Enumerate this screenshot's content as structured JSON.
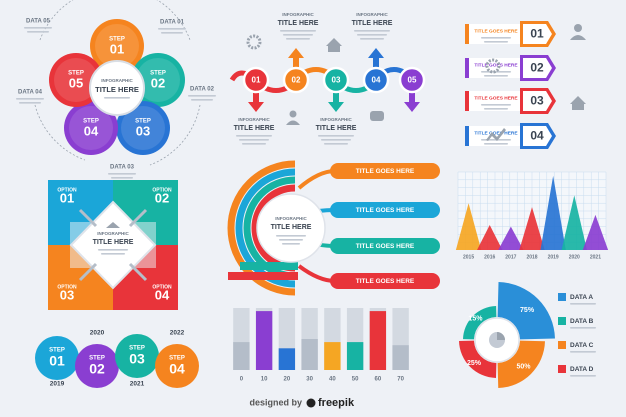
{
  "flower": {
    "subtitle": "INFOGRAPHIC",
    "title": "TITLE HERE",
    "petals": [
      {
        "step": "STEP",
        "number": "01",
        "data": "DATA 01"
      },
      {
        "step": "STEP",
        "number": "02",
        "data": "DATA 02"
      },
      {
        "step": "STEP",
        "number": "03",
        "data": "DATA 03"
      },
      {
        "step": "STEP",
        "number": "04",
        "data": "DATA 04"
      },
      {
        "step": "STEP",
        "number": "05",
        "data": "DATA 05"
      }
    ]
  },
  "timeline": {
    "numbers": [
      "01",
      "02",
      "03",
      "04",
      "05"
    ],
    "captions": [
      {
        "subtitle": "INFOGRAPHIC",
        "title": "TITLE HERE"
      },
      {
        "subtitle": "INFOGRAPHIC",
        "title": "TITLE HERE"
      },
      {
        "subtitle": "INFOGRAPHIC",
        "title": "TITLE HERE"
      },
      {
        "subtitle": "INFOGRAPHIC",
        "title": "TITLE HERE"
      }
    ]
  },
  "tags": {
    "items": [
      {
        "title": "TITLE GOES HERE",
        "number": "01"
      },
      {
        "title": "TITLE GOES HERE",
        "number": "02"
      },
      {
        "title": "TITLE GOES HERE",
        "number": "03"
      },
      {
        "title": "TITLE GOES HERE",
        "number": "04"
      }
    ]
  },
  "options": {
    "subtitle": "INFOGRAPHIC",
    "title": "TITLE HERE",
    "items": [
      {
        "label": "OPTION",
        "number": "01"
      },
      {
        "label": "OPTION",
        "number": "02"
      },
      {
        "label": "OPTION",
        "number": "03"
      },
      {
        "label": "OPTION",
        "number": "04"
      }
    ]
  },
  "semicircle": {
    "subtitle": "INFOGRAPHIC",
    "title": "TITLE HERE",
    "items": [
      "TITLE GOES HERE",
      "TITLE GOES HERE",
      "TITLE GOES HERE",
      "TITLE GOES HERE"
    ]
  },
  "chart_data": [
    {
      "type": "spike",
      "categories": [
        "2015",
        "2016",
        "2017",
        "2018",
        "2019",
        "2020",
        "2021"
      ],
      "values": [
        60,
        32,
        30,
        55,
        95,
        70,
        45
      ],
      "colors": [
        "#f5a623",
        "#e8343a",
        "#8a3ed1",
        "#e8343a",
        "#2874d4",
        "#17b3a3",
        "#8a3ed1"
      ],
      "ylim": [
        0,
        100
      ],
      "grid": true
    },
    {
      "type": "bar",
      "categories": [
        0,
        10,
        20,
        30,
        40,
        50,
        60,
        70
      ],
      "values": [
        45,
        95,
        35,
        50,
        45,
        45,
        95,
        40
      ],
      "colors": [
        "#b4bdc9",
        "#8a3ed1",
        "#2874d4",
        "#b4bdc9",
        "#f5a623",
        "#17b3a3",
        "#e8343a",
        "#b4bdc9"
      ],
      "ylim": [
        0,
        100
      ]
    },
    {
      "type": "pie",
      "categories": [
        "DATA A",
        "DATA B",
        "DATA C",
        "DATA D"
      ],
      "values": [
        75,
        15,
        50,
        25
      ],
      "value_labels": [
        "75%",
        "15%",
        "50%",
        "25%"
      ],
      "colors": [
        "#2a8fd8",
        "#17b3a3",
        "#f5841f",
        "#e8343a"
      ]
    }
  ],
  "steps": {
    "items": [
      {
        "label": "STEP",
        "number": "01",
        "year": "2019"
      },
      {
        "label": "STEP",
        "number": "02",
        "year": "2020"
      },
      {
        "label": "STEP",
        "number": "03",
        "year": "2021"
      },
      {
        "label": "STEP",
        "number": "04",
        "year": "2022"
      }
    ]
  },
  "footer": {
    "prefix": "designed by",
    "brand": "freepik"
  }
}
